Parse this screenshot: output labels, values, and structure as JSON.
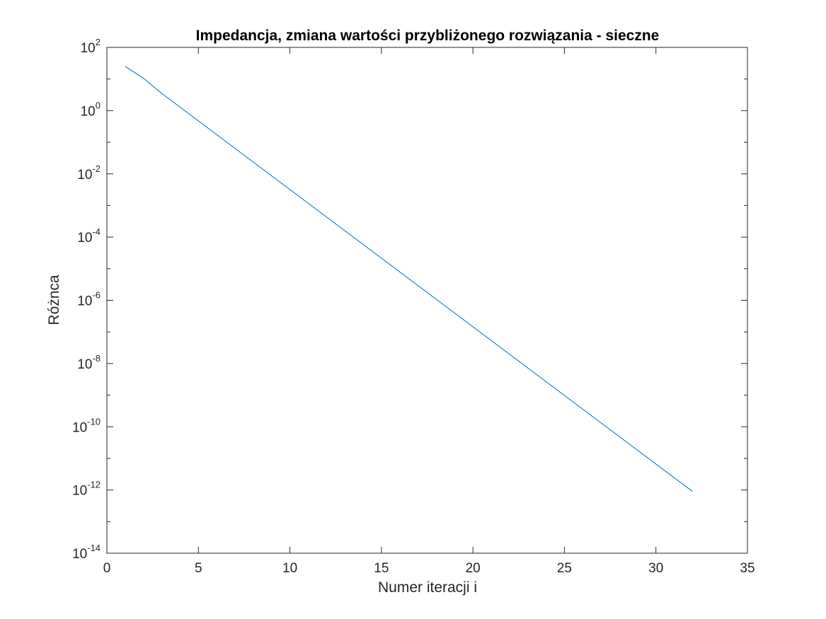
{
  "chart_data": {
    "type": "line",
    "title": "Impedancja, zmiana wartości przybliżonego rozwiązania - sieczne",
    "xlabel": "Numer iteracji i",
    "ylabel": "Różnca",
    "xlim": [
      0,
      35
    ],
    "ylim": [
      1e-14,
      100
    ],
    "yscale": "log",
    "grid": false,
    "x_ticks": [
      0,
      5,
      10,
      15,
      20,
      25,
      30,
      35
    ],
    "y_ticks": [
      {
        "value": 1e-14,
        "base": "10",
        "exp": "-14"
      },
      {
        "value": 1e-12,
        "base": "10",
        "exp": "-12"
      },
      {
        "value": 1e-10,
        "base": "10",
        "exp": "-10"
      },
      {
        "value": 1e-08,
        "base": "10",
        "exp": "-8"
      },
      {
        "value": 1e-06,
        "base": "10",
        "exp": "-6"
      },
      {
        "value": 0.0001,
        "base": "10",
        "exp": "-4"
      },
      {
        "value": 0.01,
        "base": "10",
        "exp": "-2"
      },
      {
        "value": 1,
        "base": "10",
        "exp": "0"
      },
      {
        "value": 100,
        "base": "10",
        "exp": "2"
      }
    ],
    "series": [
      {
        "color": "#0072BD",
        "x": [
          1,
          2,
          3,
          32
        ],
        "y": [
          25,
          10.5,
          3.5,
          9e-13
        ]
      }
    ]
  }
}
